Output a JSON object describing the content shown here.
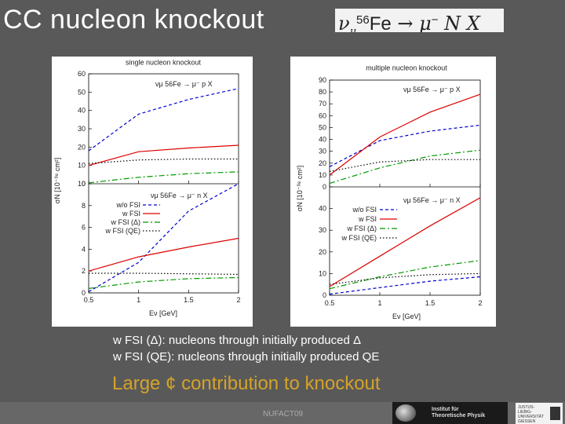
{
  "slide": {
    "title": "CC nucleon knockout",
    "formula": {
      "nu": "ν",
      "mu_sub": "μ",
      "mass": "56",
      "fe": "Fe",
      "arrow": " → ",
      "mu": "μ",
      "minus": "−",
      "rest": " N X"
    },
    "notes": [
      "w FSI (Δ): nucleons through initially produced Δ",
      "w FSI (QE): nucleons through initially produced QE"
    ],
    "headline": "Large ¢ contribution to knockout",
    "footer": "NUFACT09",
    "logo_left_text": [
      "Institut für",
      "Theoretische Physik"
    ],
    "logo_right_text": [
      "JUSTUS-LIEBIG-",
      "UNIVERSITÄT",
      "GIESSEN"
    ]
  },
  "colors": {
    "wo_fsi": "#0000d0",
    "w_fsi": "#dd0000",
    "w_fsi_delta": "#009900",
    "w_fsi_qe": "#000000",
    "headline": "#d4a32a"
  },
  "legend": [
    "w/o FSI",
    "w FSI",
    "w FSI (Δ)",
    "w FSI (QE)"
  ],
  "chart_data": [
    {
      "type": "line",
      "title": "single nucleon knockout",
      "ylabel": "σN [10⁻³⁸ cm²]",
      "xlabel": "Eν [GeV]",
      "x_ticks": [
        "0.5",
        "1",
        "1.5",
        "2"
      ],
      "xlim": [
        0.5,
        2
      ],
      "subplots": [
        {
          "label": "νμ 56Fe → μ⁻ p X",
          "ylim": [
            0,
            60
          ],
          "y_ticks": [
            "0",
            "10",
            "20",
            "30",
            "40",
            "50",
            "60"
          ],
          "series": [
            {
              "name": "w/o FSI",
              "x": [
                0.5,
                1,
                1.5,
                2
              ],
              "values": [
                18,
                38,
                46,
                52
              ]
            },
            {
              "name": "w FSI",
              "x": [
                0.5,
                1,
                1.5,
                2
              ],
              "values": [
                10,
                17.5,
                19.5,
                21
              ]
            },
            {
              "name": "w FSI (Δ)",
              "x": [
                0.5,
                1,
                1.5,
                2
              ],
              "values": [
                0.5,
                3.5,
                5.5,
                6.5
              ]
            },
            {
              "name": "w FSI (QE)",
              "x": [
                0.5,
                1,
                1.5,
                2
              ],
              "values": [
                11,
                13,
                13.5,
                13.5
              ]
            }
          ]
        },
        {
          "label": "νμ 56Fe → μ⁻ n X",
          "ylim": [
            0,
            10
          ],
          "y_ticks": [
            "0",
            "2",
            "4",
            "6",
            "8",
            "10"
          ],
          "series": [
            {
              "name": "w/o FSI",
              "x": [
                0.5,
                1,
                1.5,
                2
              ],
              "values": [
                0.1,
                2.8,
                7.5,
                10
              ]
            },
            {
              "name": "w FSI",
              "x": [
                0.5,
                1,
                1.5,
                2
              ],
              "values": [
                2,
                3.3,
                4.2,
                5
              ]
            },
            {
              "name": "w FSI (Δ)",
              "x": [
                0.5,
                1,
                1.5,
                2
              ],
              "values": [
                0.4,
                1,
                1.3,
                1.4
              ]
            },
            {
              "name": "w FSI (QE)",
              "x": [
                0.5,
                1,
                1.5,
                2
              ],
              "values": [
                1.8,
                1.8,
                1.75,
                1.7
              ]
            }
          ]
        }
      ]
    },
    {
      "type": "line",
      "title": "multiple nucleon knockout",
      "ylabel": "σN [10⁻³⁸ cm²]",
      "xlabel": "Eν [GeV]",
      "x_ticks": [
        "0.5",
        "1",
        "1.5",
        "2"
      ],
      "xlim": [
        0.5,
        2
      ],
      "subplots": [
        {
          "label": "νμ 56Fe → μ⁻ p X",
          "ylim": [
            0,
            90
          ],
          "y_ticks": [
            "0",
            "10",
            "20",
            "30",
            "40",
            "50",
            "60",
            "70",
            "80",
            "90"
          ],
          "series": [
            {
              "name": "w/o FSI",
              "x": [
                0.5,
                1,
                1.5,
                2
              ],
              "values": [
                17,
                39,
                47,
                52
              ]
            },
            {
              "name": "w FSI",
              "x": [
                0.5,
                1,
                1.5,
                2
              ],
              "values": [
                10,
                42,
                63,
                78
              ]
            },
            {
              "name": "w FSI (Δ)",
              "x": [
                0.5,
                1,
                1.5,
                2
              ],
              "values": [
                3,
                16,
                26,
                31
              ]
            },
            {
              "name": "w FSI (QE)",
              "x": [
                0.5,
                1,
                1.5,
                2
              ],
              "values": [
                13,
                21,
                23,
                23
              ]
            }
          ]
        },
        {
          "label": "νμ 56Fe → μ⁻ n X",
          "ylim": [
            0,
            50
          ],
          "y_ticks": [
            "0",
            "10",
            "20",
            "30",
            "40"
          ],
          "series": [
            {
              "name": "w/o FSI",
              "x": [
                0.5,
                1,
                1.5,
                2
              ],
              "values": [
                0.5,
                3.5,
                6.5,
                8.5
              ]
            },
            {
              "name": "w FSI",
              "x": [
                0.5,
                1,
                1.5,
                2
              ],
              "values": [
                4,
                18,
                32,
                45
              ]
            },
            {
              "name": "w FSI (Δ)",
              "x": [
                0.5,
                1,
                1.5,
                2
              ],
              "values": [
                3,
                8.5,
                13,
                16
              ]
            },
            {
              "name": "w FSI (QE)",
              "x": [
                0.5,
                1,
                1.5,
                2
              ],
              "values": [
                5,
                8,
                9.5,
                10
              ]
            }
          ]
        }
      ]
    }
  ]
}
